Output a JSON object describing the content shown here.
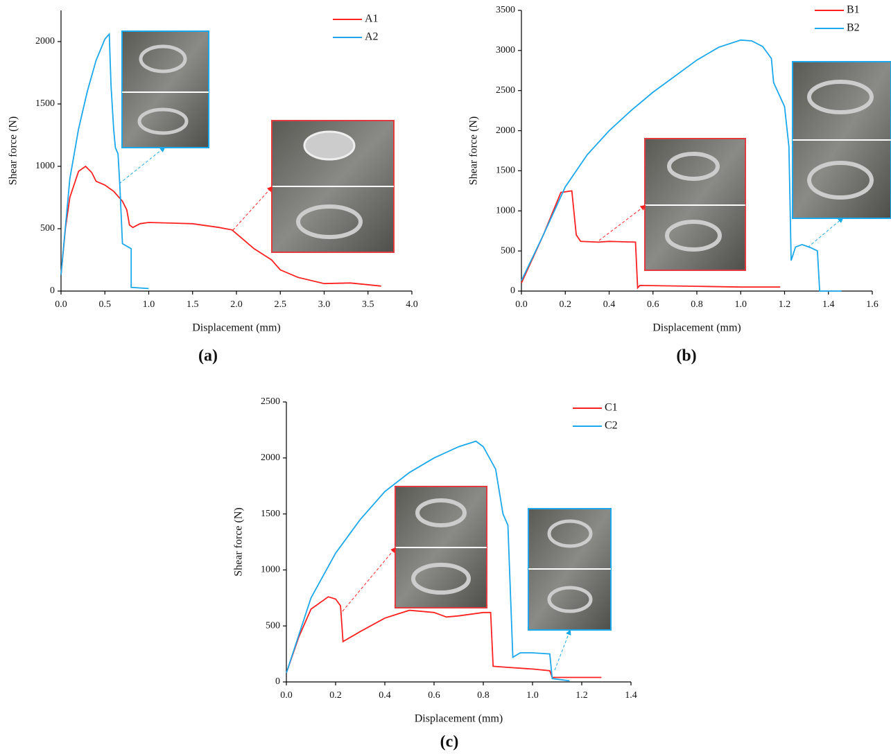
{
  "chart_data": [
    {
      "type": "line",
      "panel_label": "(a)",
      "x_label": "Displacement (mm)",
      "y_label": "Shear force (N)",
      "xlim": [
        0,
        4.0
      ],
      "ylim": [
        0,
        2250
      ],
      "xticks": [
        {
          "value": 0,
          "label": "0.0"
        },
        0.5,
        {
          "value": 1,
          "label": "1.0"
        },
        1.5,
        {
          "value": 2,
          "label": "2.0"
        },
        2.5,
        {
          "value": 3,
          "label": "3.0"
        },
        3.5,
        {
          "value": 4,
          "label": "4.0"
        }
      ],
      "yticks": [
        0,
        500,
        1000,
        1500,
        2000
      ],
      "legend": "upper-right",
      "series": [
        {
          "name": "A1",
          "color": "#ff2020",
          "x": [
            0,
            0.05,
            0.1,
            0.2,
            0.28,
            0.35,
            0.4,
            0.5,
            0.6,
            0.7,
            0.75,
            0.78,
            0.82,
            0.9,
            1.0,
            1.5,
            1.8,
            1.95,
            2.0,
            2.2,
            2.4,
            2.5,
            2.7,
            3.0,
            3.3,
            3.65
          ],
          "values": [
            130,
            500,
            750,
            960,
            1000,
            950,
            880,
            850,
            800,
            720,
            650,
            530,
            510,
            540,
            550,
            540,
            510,
            490,
            460,
            340,
            250,
            170,
            110,
            60,
            65,
            40
          ]
        },
        {
          "name": "A2",
          "color": "#1aa7ec",
          "x": [
            0,
            0.1,
            0.2,
            0.3,
            0.4,
            0.5,
            0.55,
            0.57,
            0.6,
            0.62,
            0.65,
            0.67,
            0.7,
            0.8,
            0.8,
            1.0
          ],
          "values": [
            130,
            900,
            1300,
            1600,
            1850,
            2020,
            2060,
            1650,
            1300,
            1150,
            1100,
            850,
            380,
            340,
            30,
            20
          ]
        }
      ]
    },
    {
      "type": "line",
      "panel_label": "(b)",
      "x_label": "Displacement (mm)",
      "y_label": "Shear force (N)",
      "xlim": [
        0,
        1.6
      ],
      "ylim": [
        0,
        3500
      ],
      "xticks": [
        {
          "value": 0,
          "label": "0.0"
        },
        0.2,
        0.4,
        0.6,
        0.8,
        {
          "value": 1,
          "label": "1.0"
        },
        1.2,
        1.4,
        1.6
      ],
      "yticks": [
        0,
        500,
        1000,
        1500,
        2000,
        2500,
        3000,
        3500
      ],
      "legend": "upper-right",
      "series": [
        {
          "name": "B1",
          "color": "#ff2020",
          "x": [
            0,
            0.1,
            0.18,
            0.23,
            0.25,
            0.27,
            0.35,
            0.4,
            0.52,
            0.53,
            0.54,
            0.8,
            1.0,
            1.18
          ],
          "values": [
            100,
            700,
            1230,
            1250,
            700,
            620,
            610,
            620,
            610,
            40,
            70,
            60,
            50,
            50
          ]
        },
        {
          "name": "B2",
          "color": "#1aa7ec",
          "x": [
            0,
            0.1,
            0.2,
            0.3,
            0.4,
            0.5,
            0.6,
            0.7,
            0.8,
            0.9,
            1.0,
            1.05,
            1.1,
            1.14,
            1.15,
            1.2,
            1.22,
            1.23,
            1.25,
            1.28,
            1.32,
            1.35,
            1.36,
            1.46
          ],
          "values": [
            130,
            700,
            1300,
            1700,
            2000,
            2250,
            2480,
            2680,
            2880,
            3040,
            3130,
            3120,
            3050,
            2900,
            2600,
            2300,
            1800,
            380,
            550,
            580,
            540,
            500,
            0,
            0
          ]
        }
      ]
    },
    {
      "type": "line",
      "panel_label": "(c)",
      "x_label": "Displacement (mm)",
      "y_label": "Shear force (N)",
      "xlim": [
        0,
        1.4
      ],
      "ylim": [
        0,
        2500
      ],
      "xticks": [
        {
          "value": 0,
          "label": "0.0"
        },
        0.2,
        0.4,
        0.6,
        0.8,
        {
          "value": 1,
          "label": "1.0"
        },
        1.2,
        1.4
      ],
      "yticks": [
        0,
        500,
        1000,
        1500,
        2000,
        2500
      ],
      "legend": "upper-right",
      "series": [
        {
          "name": "C1",
          "color": "#ff2020",
          "x": [
            0,
            0.05,
            0.1,
            0.17,
            0.2,
            0.22,
            0.23,
            0.3,
            0.4,
            0.5,
            0.6,
            0.65,
            0.7,
            0.8,
            0.83,
            0.84,
            0.9,
            1.0,
            1.07,
            1.08,
            1.28
          ],
          "values": [
            80,
            400,
            650,
            760,
            740,
            680,
            360,
            450,
            570,
            640,
            620,
            580,
            590,
            620,
            620,
            140,
            130,
            115,
            100,
            40,
            40
          ]
        },
        {
          "name": "C2",
          "color": "#1aa7ec",
          "x": [
            0,
            0.1,
            0.2,
            0.3,
            0.4,
            0.5,
            0.6,
            0.7,
            0.77,
            0.8,
            0.85,
            0.88,
            0.9,
            0.92,
            0.95,
            1.0,
            1.07,
            1.08,
            1.15
          ],
          "values": [
            80,
            750,
            1150,
            1450,
            1700,
            1870,
            2000,
            2100,
            2150,
            2100,
            1900,
            1500,
            1400,
            220,
            260,
            260,
            250,
            30,
            10
          ]
        }
      ]
    }
  ]
}
